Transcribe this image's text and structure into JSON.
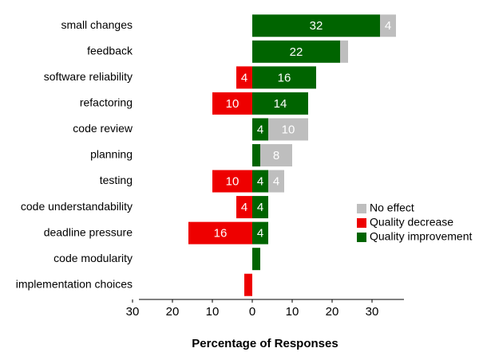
{
  "chart_data": {
    "type": "diverging-bar",
    "x_label": "Percentage of Responses",
    "categories": [
      "small changes",
      "feedback",
      "software reliability",
      "refactoring",
      "code review",
      "planning",
      "testing",
      "code understandability",
      "deadline pressure",
      "code modularity",
      "implementation choices"
    ],
    "series": [
      {
        "name": "No effect",
        "color": "#bebebe",
        "values": [
          4,
          2,
          0,
          0,
          10,
          8,
          4,
          0,
          0,
          0,
          0
        ],
        "value_labels": [
          "4",
          null,
          null,
          null,
          "10",
          "8",
          "4",
          null,
          null,
          null,
          null
        ]
      },
      {
        "name": "Quality decrease",
        "color": "#ee0000",
        "values": [
          0,
          0,
          -4,
          -10,
          0,
          0,
          -10,
          -4,
          -16,
          0,
          -2
        ],
        "value_labels": [
          null,
          null,
          "4",
          "10",
          null,
          null,
          "10",
          "4",
          "16",
          null,
          null
        ]
      },
      {
        "name": "Quality improvement",
        "color": "#006400",
        "values": [
          32,
          22,
          16,
          14,
          4,
          2,
          4,
          4,
          4,
          2,
          0
        ],
        "value_labels": [
          "32",
          "22",
          "16",
          "14",
          "4",
          null,
          "4",
          "4",
          "4",
          null,
          null
        ]
      }
    ],
    "xlim": [
      -30,
      38
    ],
    "xticks": [
      {
        "value": -30,
        "label": "30"
      },
      {
        "value": -20,
        "label": "20"
      },
      {
        "value": -10,
        "label": "10"
      },
      0,
      10,
      20,
      30
    ],
    "legend": "right"
  }
}
